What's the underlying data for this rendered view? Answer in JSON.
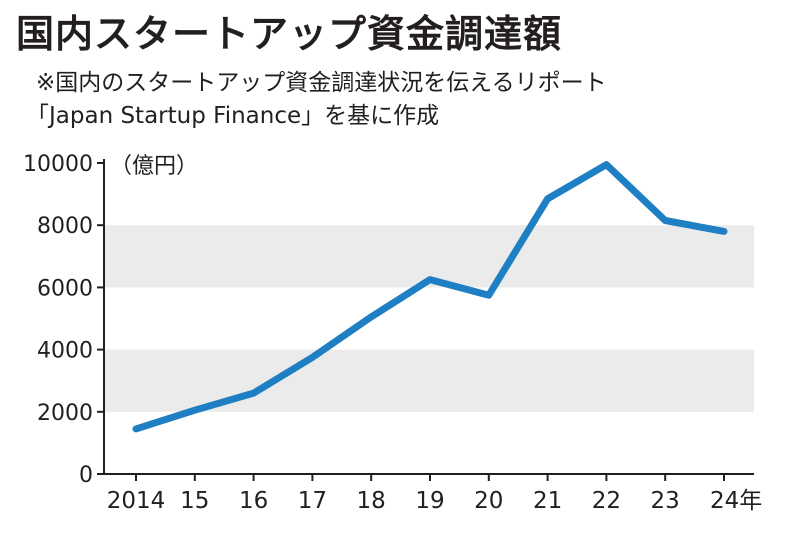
{
  "chart_data": {
    "type": "line",
    "title": "国内スタートアップ資金調達額",
    "subtitle_lines": [
      "※国内のスタートアップ資金調達状況を伝えるリポート",
      "「Japan Startup Finance」を基に作成"
    ],
    "ylabel": "（億円）",
    "x_tick_labels": [
      "2014",
      "15",
      "16",
      "17",
      "18",
      "19",
      "20",
      "21",
      "22",
      "23",
      "24年"
    ],
    "x": [
      2014,
      2015,
      2016,
      2017,
      2018,
      2019,
      2020,
      2021,
      2022,
      2023,
      2024
    ],
    "y_ticks": [
      0,
      2000,
      4000,
      6000,
      8000,
      10000
    ],
    "ylim": [
      0,
      10000
    ],
    "series": [
      {
        "values": [
          1450,
          2050,
          2600,
          3750,
          5050,
          6250,
          5750,
          8850,
          9950,
          8150,
          7800
        ],
        "color": "#1f7fc4"
      }
    ],
    "band_color": "#ebebeb",
    "grid": "alternating-bands"
  }
}
